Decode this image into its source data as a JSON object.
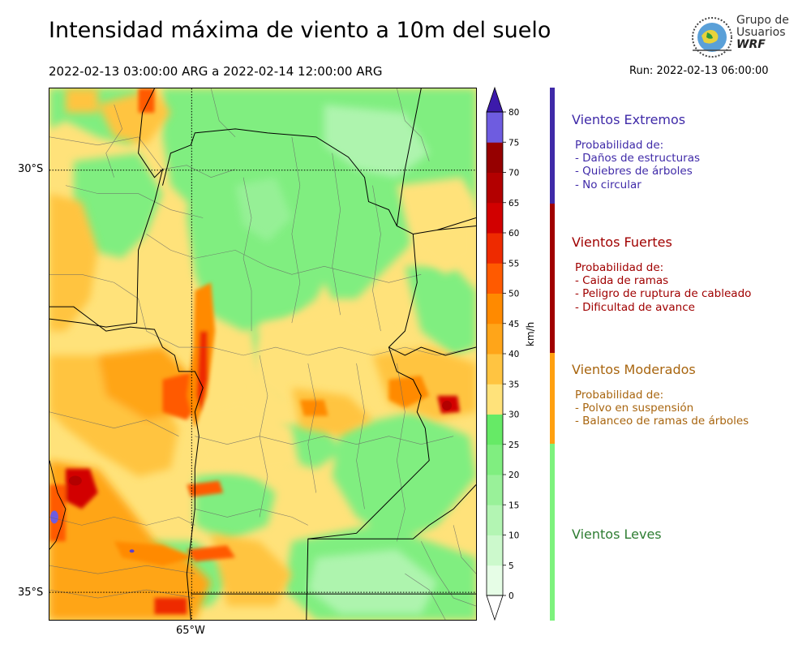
{
  "header": {
    "title": "Intensidad máxima de viento a 10m del suelo",
    "period": "2022-02-13 03:00:00 ARG  a  2022-02-14 12:00:00 ARG",
    "run": "Run: 2022-02-13 06:00:00"
  },
  "logo": {
    "line1": "Grupo de",
    "line2": "Usuarios",
    "line3": "WRF"
  },
  "map": {
    "lat_labels": [
      "30°S",
      "35°S"
    ],
    "lon_labels": [
      "65°W"
    ]
  },
  "colorbar": {
    "unit": "km/h",
    "ticks": [
      "0",
      "5",
      "10",
      "15",
      "20",
      "25",
      "30",
      "35",
      "40",
      "45",
      "50",
      "55",
      "60",
      "65",
      "70",
      "75",
      "80"
    ],
    "colors": [
      "#e6fde6",
      "#ccf9cc",
      "#b3f5b3",
      "#99f199",
      "#80ee80",
      "#66ea66",
      "#ffe27a",
      "#ffc441",
      "#ffa519",
      "#ff8a00",
      "#ff5a00",
      "#ee2a00",
      "#d20000",
      "#b30000",
      "#960000",
      "#6e5ce0",
      "#5b40d0",
      "#4a2cc0",
      "#3c1aab"
    ]
  },
  "categories": [
    {
      "title": "Vientos Extremos",
      "desc": [
        "Probabilidad de:",
        "- Daños de estructuras",
        "- Quiebres de árboles",
        "- No circular"
      ],
      "color": "#3f2aa8"
    },
    {
      "title": "Vientos Fuertes",
      "desc": [
        "Probabilidad de:",
        "- Caida de ramas",
        "- Peligro de ruptura de cableado",
        "- Dificultad de avance"
      ],
      "color": "#a00000"
    },
    {
      "title": "Vientos Moderados",
      "desc": [
        "Probabilidad de:",
        "- Polvo en suspensión",
        "- Balanceo de ramas de árboles"
      ],
      "color": "#a8650f"
    },
    {
      "title": "Vientos Leves",
      "desc": [],
      "color": "#2e7d32"
    }
  ],
  "legend_bar_colors": [
    "#3f2aa8",
    "#a00000",
    "#ffa010",
    "#7df27d"
  ]
}
